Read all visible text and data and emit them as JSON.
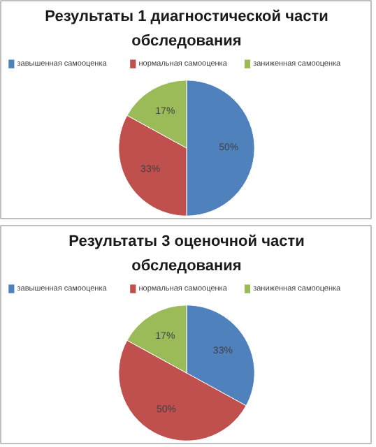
{
  "chart_data": [
    {
      "type": "pie",
      "title": "Результаты 1 диагностической части обследования",
      "categories": [
        "завышенная самооценка",
        "нормальная самооценка",
        "заниженная самооценка"
      ],
      "values": [
        50,
        33,
        17
      ],
      "colors": [
        "#4f81bd",
        "#c0504d",
        "#9bbb59"
      ],
      "value_labels": [
        "50%",
        "33%",
        "17%"
      ],
      "legend": "top"
    },
    {
      "type": "pie",
      "title": "Результаты 3 оценочной части обследования",
      "categories": [
        "завышенная самооценка",
        "нормальная самооценка",
        "заниженная самооценка"
      ],
      "values": [
        33,
        50,
        17
      ],
      "colors": [
        "#4f81bd",
        "#c0504d",
        "#9bbb59"
      ],
      "value_labels": [
        "33%",
        "50%",
        "17%"
      ],
      "legend": "top"
    }
  ]
}
